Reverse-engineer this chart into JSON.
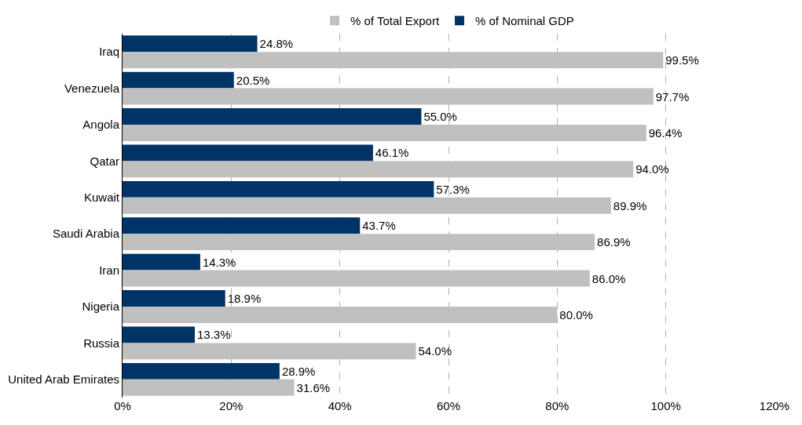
{
  "chart_data": {
    "type": "bar",
    "orientation": "horizontal",
    "categories": [
      "Iraq",
      "Venezuela",
      "Angola",
      "Qatar",
      "Kuwait",
      "Saudi Arabia",
      "Iran",
      "Nigeria",
      "Russia",
      "United Arab Emirates"
    ],
    "series": [
      {
        "name": "% of Nominal GDP",
        "color": "#003366",
        "values": [
          24.8,
          20.5,
          55.0,
          46.1,
          57.3,
          43.7,
          14.3,
          18.9,
          13.3,
          28.9
        ],
        "value_labels": [
          "24.8%",
          "20.5%",
          "55.0%",
          "46.1%",
          "57.3%",
          "43.7%",
          "14.3%",
          "18.9%",
          "13.3%",
          "28.9%"
        ]
      },
      {
        "name": "% of Total Export",
        "color": "#c0c0c0",
        "values": [
          99.5,
          97.7,
          96.4,
          94.0,
          89.9,
          86.9,
          86.0,
          80.0,
          54.0,
          31.6
        ],
        "value_labels": [
          "99.5%",
          "97.7%",
          "96.4%",
          "94.0%",
          "89.9%",
          "86.9%",
          "86.0%",
          "80.0%",
          "54.0%",
          "31.6%"
        ]
      }
    ],
    "xlim": [
      0,
      120
    ],
    "xticks": [
      {
        "value": 0,
        "label": "0%"
      },
      {
        "value": 20,
        "label": "20%"
      },
      {
        "value": 40,
        "label": "40%"
      },
      {
        "value": 60,
        "label": "60%"
      },
      {
        "value": 80,
        "label": "80%"
      },
      {
        "value": 100,
        "label": "100%"
      },
      {
        "value": 120,
        "label": "120%"
      }
    ],
    "grid": "x",
    "legend": "top"
  }
}
